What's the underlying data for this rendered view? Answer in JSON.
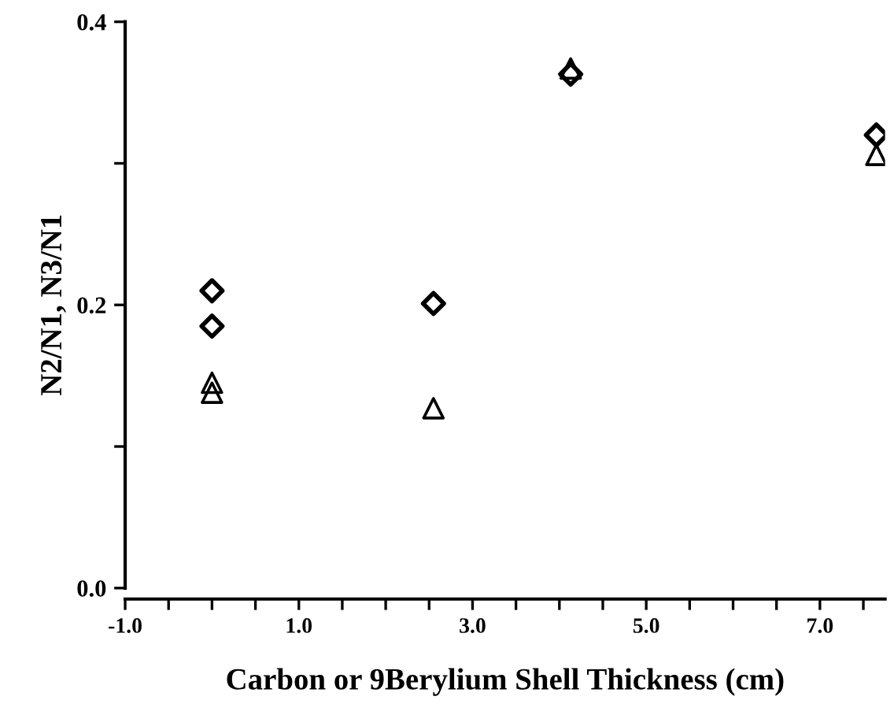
{
  "chart_data": {
    "type": "scatter",
    "xlabel": "Carbon or 9Berylium Shell Thickness (cm)",
    "ylabel": "N2/N1, N3/N1",
    "xlim": [
      -1.0,
      7.75
    ],
    "ylim": [
      0.0,
      0.4
    ],
    "xticks": [
      {
        "value": -1.0,
        "label": "-1.0"
      },
      {
        "value": -0.5,
        "label": null
      },
      {
        "value": 0.0,
        "label": null
      },
      {
        "value": 0.5,
        "label": null
      },
      {
        "value": 1.0,
        "label": "1.0"
      },
      {
        "value": 1.5,
        "label": null
      },
      {
        "value": 2.0,
        "label": null
      },
      {
        "value": 2.5,
        "label": null
      },
      {
        "value": 3.0,
        "label": "3.0"
      },
      {
        "value": 3.5,
        "label": null
      },
      {
        "value": 4.0,
        "label": null
      },
      {
        "value": 4.5,
        "label": null
      },
      {
        "value": 5.0,
        "label": "5.0"
      },
      {
        "value": 5.5,
        "label": null
      },
      {
        "value": 6.0,
        "label": null
      },
      {
        "value": 6.5,
        "label": null
      },
      {
        "value": 7.0,
        "label": "7.0"
      },
      {
        "value": 7.5,
        "label": null
      }
    ],
    "yticks": [
      {
        "value": 0.0,
        "label": "0.0"
      },
      {
        "value": 0.1,
        "label": null
      },
      {
        "value": 0.2,
        "label": "0.2"
      },
      {
        "value": 0.3,
        "label": null
      },
      {
        "value": 0.4,
        "label": "0.4"
      }
    ],
    "grid": false,
    "legend": false,
    "series": [
      {
        "color": "#000000",
        "marker": "diamond",
        "x": [
          0.0,
          0.0,
          2.55,
          4.13,
          7.65
        ],
        "values": [
          0.21,
          0.185,
          0.201,
          0.363,
          0.32
        ]
      },
      {
        "color": "#000000",
        "marker": "triangle",
        "x": [
          0.0,
          0.0,
          2.55,
          4.13,
          7.65
        ],
        "values": [
          0.145,
          0.138,
          0.127,
          0.367,
          0.306
        ]
      }
    ]
  }
}
